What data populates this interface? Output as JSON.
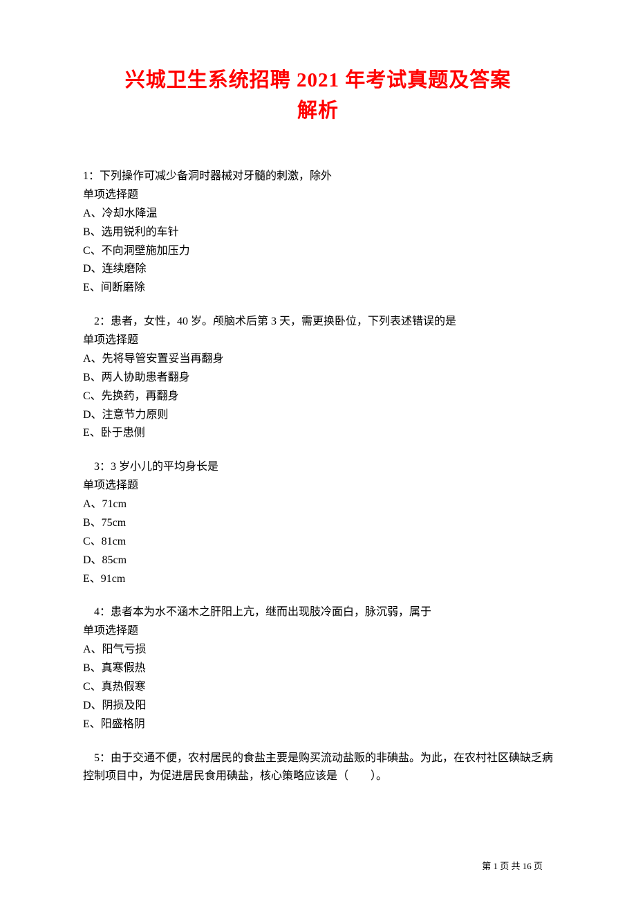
{
  "title_line1": "兴城卫生系统招聘 2021 年考试真题及答案",
  "title_line2": "解析",
  "questions": [
    {
      "text": "1：下列操作可减少备洞时器械对牙髓的刺激，除外",
      "type": "单项选择题",
      "options": [
        "A、冷却水降温",
        "B、选用锐利的车针",
        "C、不向洞壁施加压力",
        "D、连续磨除",
        "E、间断磨除"
      ]
    },
    {
      "text": "　2：患者，女性，40 岁。颅脑术后第 3 天，需更换卧位，下列表述错误的是",
      "type": "单项选择题",
      "options": [
        "A、先将导管安置妥当再翻身",
        "B、两人协助患者翻身",
        "C、先换药，再翻身",
        "D、注意节力原则",
        "E、卧于患侧"
      ]
    },
    {
      "text": "　3：3 岁小儿的平均身长是",
      "type": "单项选择题",
      "options": [
        "A、71cm",
        "B、75cm",
        "C、81cm",
        "D、85cm",
        "E、91cm"
      ]
    },
    {
      "text": "　4：患者本为水不涵木之肝阳上亢，继而出现肢冷面白，脉沉弱，属于",
      "type": "单项选择题",
      "options": [
        "A、阳气亏损",
        "B、真寒假热",
        "C、真热假寒",
        "D、阴损及阳",
        "E、阳盛格阴"
      ]
    },
    {
      "text": "　5：由于交通不便，农村居民的食盐主要是购买流动盐贩的非碘盐。为此，在农村社区碘缺乏病控制项目中，为促进居民食用碘盐，核心策略应该是（　　）。",
      "type": "",
      "options": []
    }
  ],
  "footer": "第 1 页 共 16 页",
  "styling": {
    "title_color": "#ff0000",
    "title_fontsize": 29,
    "body_fontsize": 16,
    "body_color": "#000000",
    "background_color": "#ffffff",
    "font_family": "SimSun"
  }
}
